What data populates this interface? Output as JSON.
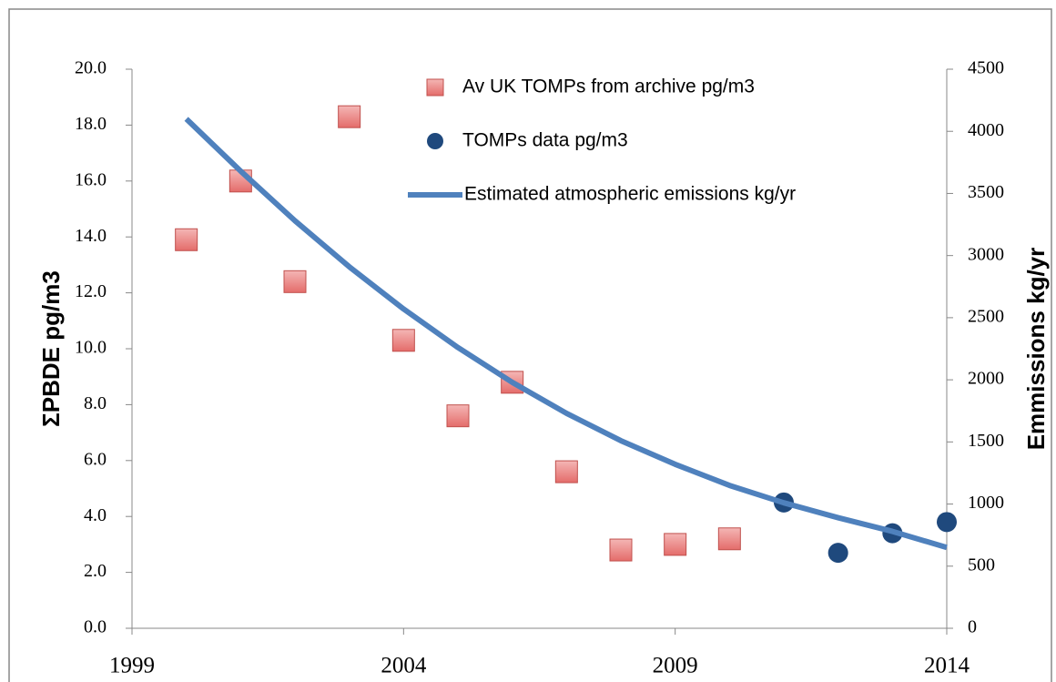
{
  "chart_data": {
    "type": "combo",
    "y_label": "ΣPBDE pg/m3",
    "y2_label": "Emmissions kg/yr",
    "x": [
      2000,
      2001,
      2002,
      2003,
      2004,
      2005,
      2006,
      2007,
      2008,
      2009,
      2010,
      2011,
      2012,
      2013,
      2014
    ],
    "xlim": [
      1999,
      2014
    ],
    "xticks": [
      1999,
      2004,
      2009,
      2014
    ],
    "ylim": [
      0,
      20
    ],
    "yticks": [
      {
        "value": 0,
        "label": "0.0"
      },
      {
        "value": 2,
        "label": "2.0"
      },
      {
        "value": 4,
        "label": "4.0"
      },
      {
        "value": 6,
        "label": "6.0"
      },
      {
        "value": 8,
        "label": "8.0"
      },
      {
        "value": 10,
        "label": "10.0"
      },
      {
        "value": 12,
        "label": "12.0"
      },
      {
        "value": 14,
        "label": "14.0"
      },
      {
        "value": 16,
        "label": "16.0"
      },
      {
        "value": 18,
        "label": "18.0"
      },
      {
        "value": 20,
        "label": "20.0"
      }
    ],
    "y2lim": [
      0,
      4500
    ],
    "y2ticks": [
      0,
      500,
      1000,
      1500,
      2000,
      2500,
      3000,
      3500,
      4000,
      4500
    ],
    "series": [
      {
        "name": "Av UK TOMPs from archive pg/m3",
        "type": "square",
        "color": "#e46c6a",
        "values": [
          13.9,
          16.0,
          12.4,
          18.3,
          10.3,
          7.6,
          8.8,
          5.6,
          2.8,
          3.0,
          3.2,
          null,
          null,
          null,
          null
        ]
      },
      {
        "name": "TOMPs data pg/m3",
        "type": "circle",
        "color": "#1f497d",
        "values": [
          null,
          null,
          null,
          null,
          null,
          null,
          null,
          null,
          null,
          null,
          null,
          4.5,
          2.7,
          3.4,
          3.8
        ]
      },
      {
        "name": "Estimated atmospheric emissions kg/yr",
        "type": "line",
        "color": "#4f81bd",
        "axis": "y2",
        "values": [
          4100,
          3680,
          3280,
          2910,
          2570,
          2260,
          1980,
          1730,
          1510,
          1320,
          1150,
          1010,
          890,
          780,
          650
        ]
      }
    ]
  }
}
